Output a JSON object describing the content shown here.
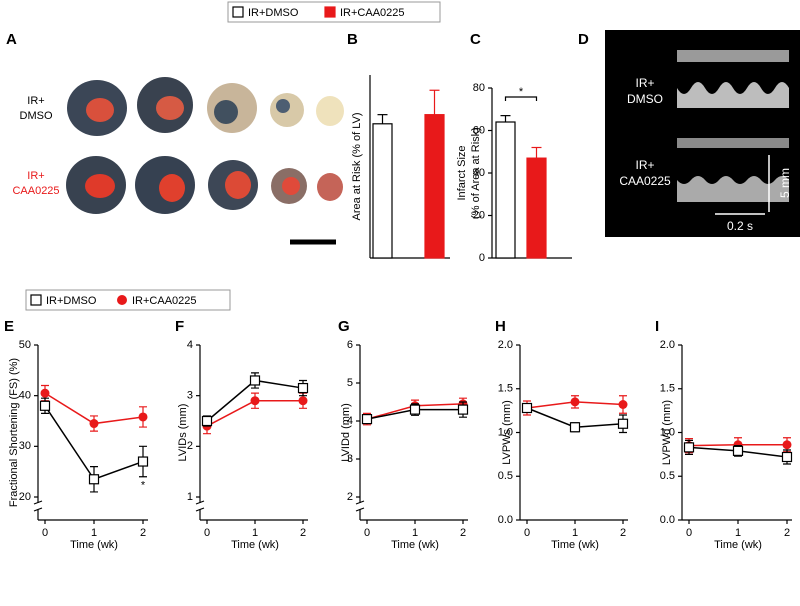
{
  "figure": {
    "panel_a": {
      "label": "A",
      "rows": [
        [
          "IR+",
          "DMSO"
        ],
        [
          "IR+",
          "CAA0225"
        ]
      ]
    },
    "panel_d": {
      "label": "D",
      "rows": [
        [
          "IR+",
          "DMSO"
        ],
        [
          "IR+",
          "CAA0225"
        ]
      ],
      "scale_y": "5 mm",
      "scale_x": "0.2 s"
    }
  },
  "chart_data": [
    {
      "type": "bar",
      "label": "B",
      "ylabel": "Area at Risk (% of LV)",
      "ylim": [
        0,
        30
      ],
      "series": [
        {
          "name": "IR+DMSO",
          "color": "#ffffff",
          "values": [
            22
          ],
          "errors": [
            1.5
          ]
        },
        {
          "name": "IR+CAA0225",
          "color": "#e8191a",
          "values": [
            23.5
          ],
          "errors": [
            4
          ]
        }
      ]
    },
    {
      "type": "bar",
      "label": "C",
      "ylabel": [
        "Infarct Size",
        "(% of Area at Risk)"
      ],
      "ylim": [
        0,
        80
      ],
      "yticks": [
        0,
        20,
        40,
        60,
        80
      ],
      "annotation": "*",
      "series": [
        {
          "color": "#ffffff",
          "values": [
            64
          ],
          "errors": [
            3
          ]
        },
        {
          "color": "#e8191a",
          "values": [
            47
          ],
          "errors": [
            5
          ]
        }
      ]
    },
    {
      "type": "line",
      "label": "E",
      "xlabel": "Time (wk)",
      "ylabel": "Fractional Shortening (FS) (%)",
      "x": [
        0,
        1,
        2
      ],
      "xlim": [
        0,
        2
      ],
      "xticks": [
        0,
        1,
        2
      ],
      "ylim": [
        20,
        50
      ],
      "yticks": [
        20,
        30,
        40,
        50
      ],
      "axis_break": true,
      "annotation": "*",
      "series": [
        {
          "name": "IR+DMSO",
          "color": "#000000",
          "marker": "square",
          "values": [
            38,
            23.5,
            27
          ],
          "errors": [
            1.5,
            2.5,
            3
          ]
        },
        {
          "name": "IR+CAA0225",
          "color": "#e8191a",
          "marker": "circle",
          "values": [
            40.5,
            34.5,
            35.8
          ],
          "errors": [
            1.5,
            1.5,
            2
          ]
        }
      ]
    },
    {
      "type": "line",
      "label": "F",
      "xlabel": "Time (wk)",
      "ylabel": "LVIDs (mm)",
      "x": [
        0,
        1,
        2
      ],
      "xlim": [
        0,
        2
      ],
      "xticks": [
        0,
        1,
        2
      ],
      "ylim": [
        1,
        4
      ],
      "yticks": [
        1,
        2,
        3,
        4
      ],
      "axis_break": true,
      "series": [
        {
          "color": "#000000",
          "marker": "square",
          "values": [
            2.5,
            3.3,
            3.15
          ],
          "errors": [
            0.1,
            0.15,
            0.15
          ]
        },
        {
          "color": "#e8191a",
          "marker": "circle",
          "values": [
            2.4,
            2.9,
            2.9
          ],
          "errors": [
            0.15,
            0.15,
            0.15
          ]
        }
      ]
    },
    {
      "type": "line",
      "label": "G",
      "xlabel": "Time (wk)",
      "ylabel": "LVIDd (mm)",
      "x": [
        0,
        1,
        2
      ],
      "xlim": [
        0,
        2
      ],
      "xticks": [
        0,
        1,
        2
      ],
      "ylim": [
        2,
        6
      ],
      "yticks": [
        2,
        3,
        4,
        5,
        6
      ],
      "axis_break": true,
      "series": [
        {
          "color": "#000000",
          "marker": "square",
          "values": [
            4.05,
            4.3,
            4.3
          ],
          "errors": [
            0.1,
            0.15,
            0.2
          ]
        },
        {
          "color": "#e8191a",
          "marker": "circle",
          "values": [
            4.05,
            4.4,
            4.45
          ],
          "errors": [
            0.15,
            0.15,
            0.15
          ]
        }
      ]
    },
    {
      "type": "line",
      "label": "H",
      "xlabel": "Time (wk)",
      "ylabel": "LVPWs (mm)",
      "x": [
        0,
        1,
        2
      ],
      "xlim": [
        0,
        2
      ],
      "xticks": [
        0,
        1,
        2
      ],
      "ylim": [
        0,
        2
      ],
      "yticks": [
        {
          "value": 0,
          "label": "0.0"
        },
        0.5,
        {
          "value": 1,
          "label": "1.0"
        },
        1.5,
        {
          "value": 2,
          "label": "2.0"
        }
      ],
      "axis_break": false,
      "series": [
        {
          "color": "#000000",
          "marker": "square",
          "values": [
            1.28,
            1.06,
            1.1
          ],
          "errors": [
            0.05,
            0.05,
            0.1
          ]
        },
        {
          "color": "#e8191a",
          "marker": "circle",
          "values": [
            1.28,
            1.35,
            1.32
          ],
          "errors": [
            0.08,
            0.07,
            0.1
          ]
        }
      ]
    },
    {
      "type": "line",
      "label": "I",
      "xlabel": "Time (wk)",
      "ylabel": "LVPWd (mm)",
      "x": [
        0,
        1,
        2
      ],
      "xlim": [
        0,
        2
      ],
      "xticks": [
        0,
        1,
        2
      ],
      "ylim": [
        0,
        2
      ],
      "yticks": [
        {
          "value": 0,
          "label": "0.0"
        },
        0.5,
        {
          "value": 1,
          "label": "1.0"
        },
        1.5,
        {
          "value": 2,
          "label": "2.0"
        }
      ],
      "axis_break": false,
      "series": [
        {
          "color": "#000000",
          "marker": "square",
          "values": [
            0.83,
            0.79,
            0.72
          ],
          "errors": [
            0.08,
            0.06,
            0.08
          ]
        },
        {
          "color": "#e8191a",
          "marker": "circle",
          "values": [
            0.85,
            0.86,
            0.86
          ],
          "errors": [
            0.08,
            0.08,
            0.08
          ]
        }
      ]
    }
  ]
}
